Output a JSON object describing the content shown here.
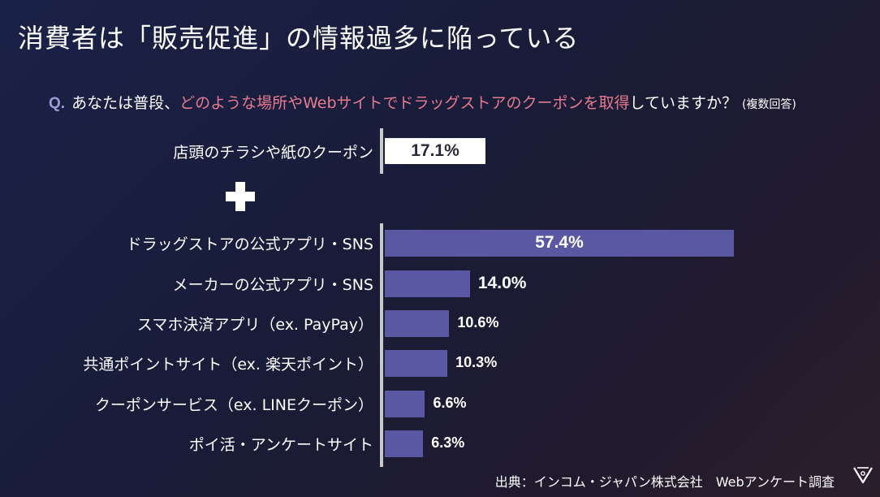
{
  "title": "消費者は「販売促進」の情報過多に陥っている",
  "question": {
    "prefix": "Q.",
    "text_before": "あなたは普段、",
    "highlight": "どのような場所やWebサイトでドラッグストアのクーポンを取得",
    "text_after": "していますか？",
    "note": "(複数回答)"
  },
  "chart_data": {
    "type": "bar",
    "orientation": "horizontal",
    "unit": "%",
    "groups": [
      {
        "name": "paper",
        "categories": [
          "店頭のチラシや紙のクーポン"
        ],
        "values": [
          17.1
        ],
        "labels": [
          "17.1%"
        ]
      },
      {
        "name": "digital",
        "categories": [
          "ドラッグストアの公式アプリ・SNS",
          "メーカーの公式アプリ・SNS",
          "スマホ決済アプリ（ex. PayPay）",
          "共通ポイントサイト（ex. 楽天ポイント）",
          "クーポンサービス（ex. LINEクーポン）",
          "ポイ活・アンケートサイト"
        ],
        "values": [
          57.4,
          14.0,
          10.6,
          10.3,
          6.6,
          6.3
        ],
        "labels": [
          "57.4%",
          "14.0%",
          "10.6%",
          "10.3%",
          "6.6%",
          "6.3%"
        ]
      }
    ],
    "separator": "+",
    "colors": {
      "paper_bar": "#ffffff",
      "digital_bar": "#5a58a3",
      "highlight_text": "#e87a8f"
    }
  },
  "source": "出典：インコム・ジャパン株式会社　Webアンケート調査"
}
